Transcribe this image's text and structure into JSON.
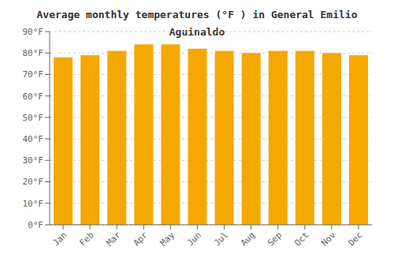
{
  "chart_data": {
    "type": "bar",
    "title": "Average monthly temperatures (°F ) in General Emilio Aguinaldo",
    "categories": [
      "Jan",
      "Feb",
      "Mar",
      "Apr",
      "May",
      "Jun",
      "Jul",
      "Aug",
      "Sep",
      "Oct",
      "Nov",
      "Dec"
    ],
    "values": [
      78,
      79,
      81,
      84,
      84,
      82,
      81,
      80,
      81,
      81,
      80,
      79
    ],
    "color": "#F5A800",
    "ylim": [
      0,
      90
    ],
    "yticks": [
      {
        "value": 0,
        "label": "0°F"
      },
      {
        "value": 10,
        "label": "10°F"
      },
      {
        "value": 20,
        "label": "20°F"
      },
      {
        "value": 30,
        "label": "30°F"
      },
      {
        "value": 40,
        "label": "40°F"
      },
      {
        "value": 50,
        "label": "50°F"
      },
      {
        "value": 60,
        "label": "60°F"
      },
      {
        "value": 70,
        "label": "70°F"
      },
      {
        "value": 80,
        "label": "80°F"
      },
      {
        "value": 90,
        "label": "90°F"
      }
    ],
    "grid": true
  }
}
